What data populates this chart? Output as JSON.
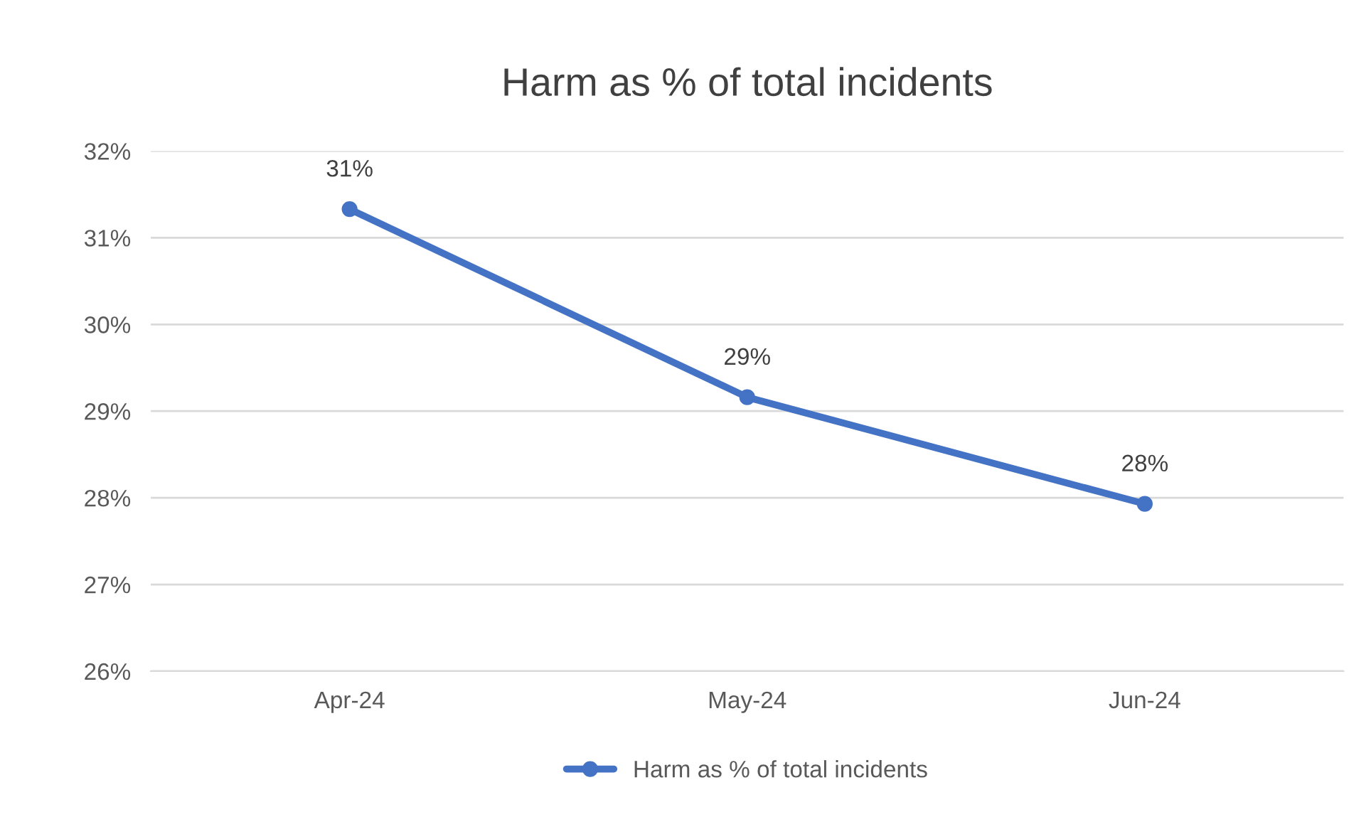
{
  "chart_data": {
    "type": "line",
    "title": "Harm as % of total incidents",
    "categories": [
      "Apr-24",
      "May-24",
      "Jun-24"
    ],
    "series": [
      {
        "name": "Harm as % of total incidents",
        "color": "#4472c4",
        "values": [
          31.33,
          29.16,
          27.93
        ],
        "value_labels": [
          "31%",
          "29%",
          "28%"
        ]
      }
    ],
    "ylim": [
      26,
      32
    ],
    "yticks": [
      {
        "value": 26,
        "label": "26%"
      },
      {
        "value": 27,
        "label": "27%"
      },
      {
        "value": 28,
        "label": "28%"
      },
      {
        "value": 29,
        "label": "29%"
      },
      {
        "value": 30,
        "label": "30%"
      },
      {
        "value": 31,
        "label": "31%"
      },
      {
        "value": 32,
        "label": "32%"
      }
    ],
    "grid": "y",
    "legend": "bottom",
    "marker": "circle",
    "line_style": "solid"
  }
}
